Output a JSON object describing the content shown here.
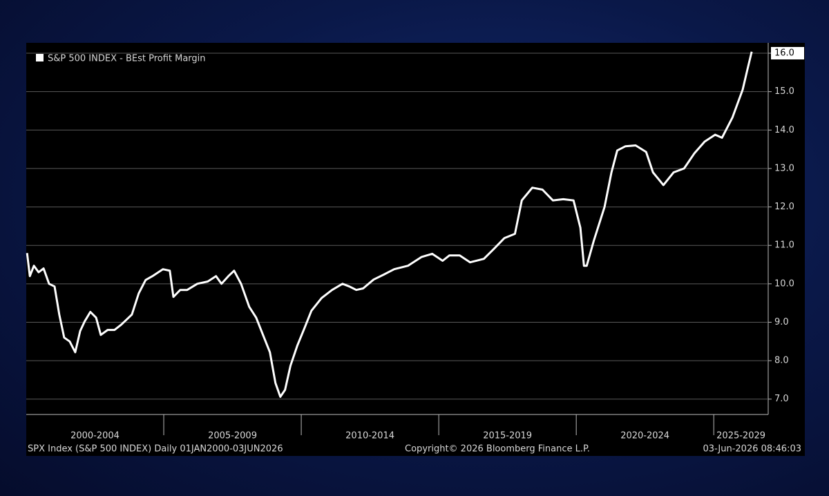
{
  "chart_data": {
    "type": "line",
    "series": [
      {
        "name": "S&P 500 INDEX - BEst Profit Margin",
        "color": "#ffffff",
        "values": [
          10.8,
          10.2,
          10.47,
          10.3,
          10.4,
          10.0,
          9.93,
          9.2,
          8.6,
          8.5,
          8.22,
          8.77,
          9.03,
          9.27,
          9.12,
          8.67,
          8.8,
          8.8,
          8.94,
          9.2,
          9.75,
          10.1,
          10.2,
          10.38,
          10.34,
          9.66,
          9.84,
          9.84,
          10.0,
          10.06,
          10.2,
          10.0,
          10.2,
          10.34,
          10.0,
          9.4,
          9.12,
          8.67,
          8.22,
          7.42,
          7.06,
          7.24,
          7.87,
          8.4,
          8.85,
          9.3,
          9.63,
          9.84,
          10.0,
          9.93,
          9.84,
          9.88,
          10.11,
          10.24,
          10.38,
          10.47,
          10.7,
          10.78,
          10.6,
          10.74,
          10.74,
          10.56,
          10.65,
          10.92,
          11.19,
          11.3,
          12.17,
          12.5,
          12.45,
          12.17,
          12.2,
          12.17,
          11.46,
          10.47,
          10.47,
          11.1,
          12.0,
          12.9,
          13.47,
          13.58,
          13.6,
          13.43,
          12.9,
          12.57,
          12.9,
          13.0,
          13.4,
          13.7,
          13.88,
          13.8,
          14.33,
          15.05,
          15.59,
          16.04
        ]
      }
    ],
    "x": [
      2000.03,
      2000.13,
      2000.28,
      2000.45,
      2000.63,
      2000.83,
      2001.03,
      2001.2,
      2001.38,
      2001.58,
      2001.78,
      2001.96,
      2002.13,
      2002.33,
      2002.54,
      2002.71,
      2002.96,
      2003.21,
      2003.46,
      2003.84,
      2004.09,
      2004.34,
      2004.59,
      2004.97,
      2005.22,
      2005.35,
      2005.6,
      2005.85,
      2006.22,
      2006.6,
      2006.9,
      2007.1,
      2007.35,
      2007.56,
      2007.81,
      2008.11,
      2008.36,
      2008.61,
      2008.86,
      2009.06,
      2009.24,
      2009.41,
      2009.61,
      2009.86,
      2010.12,
      2010.37,
      2010.74,
      2011.12,
      2011.5,
      2011.75,
      2012.0,
      2012.25,
      2012.63,
      2013.0,
      2013.38,
      2013.88,
      2014.38,
      2014.76,
      2015.14,
      2015.39,
      2015.76,
      2016.14,
      2016.64,
      2017.02,
      2017.39,
      2017.77,
      2018.02,
      2018.4,
      2018.77,
      2019.15,
      2019.53,
      2019.9,
      2020.15,
      2020.28,
      2020.38,
      2020.63,
      2021.03,
      2021.28,
      2021.49,
      2021.79,
      2022.16,
      2022.54,
      2022.79,
      2023.17,
      2023.54,
      2023.92,
      2024.3,
      2024.67,
      2025.05,
      2025.3,
      2025.68,
      2026.05,
      2026.23,
      2026.38
    ],
    "xlim": [
      2000,
      2026.98
    ],
    "xticks": [
      {
        "value": 2000,
        "label": "2000-2004"
      },
      {
        "value": 2005,
        "label": "2005-2009"
      },
      {
        "value": 2010,
        "label": "2010-2014"
      },
      {
        "value": 2015,
        "label": "2015-2019"
      },
      {
        "value": 2020,
        "label": "2020-2024"
      },
      {
        "value": 2025,
        "label": "2025-2029"
      }
    ],
    "ylim": [
      6.6,
      16.27
    ],
    "yticks": [
      {
        "value": 7,
        "label": "7.0"
      },
      {
        "value": 8,
        "label": "8.0"
      },
      {
        "value": 9,
        "label": "9.0"
      },
      {
        "value": 10,
        "label": "10.0"
      },
      {
        "value": 11,
        "label": "11.0"
      },
      {
        "value": 12,
        "label": "12.0"
      },
      {
        "value": 13,
        "label": "13.0"
      },
      {
        "value": 14,
        "label": "14.0"
      },
      {
        "value": 15,
        "label": "15.0"
      },
      {
        "value": 16,
        "label": "16.0"
      }
    ],
    "grid": true,
    "footer": {
      "left": "SPX Index (S&P 500 INDEX) Daily 01JAN2000-03JUN2026",
      "center": "Copyright© 2026 Bloomberg Finance L.P.",
      "right": "03-Jun-2026 08:46:03"
    }
  }
}
